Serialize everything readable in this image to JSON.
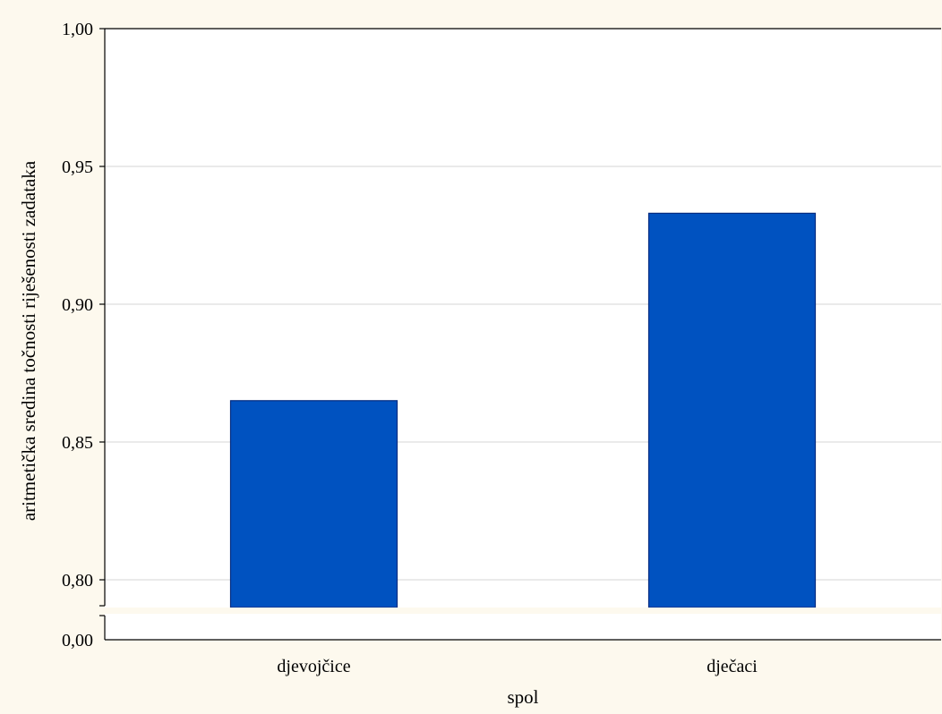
{
  "chart_data": {
    "type": "bar",
    "categories": [
      "djevojčice",
      "dječaci"
    ],
    "values": [
      0.865,
      0.933
    ],
    "xlabel": "spol",
    "ylabel": "aritmetička sredina točnosti riješenosti zadataka",
    "ylim": [
      0.79,
      1.0
    ],
    "axis_break": true,
    "break_base_label": "0,00",
    "yticks": [
      0.8,
      0.85,
      0.9,
      0.95,
      1.0
    ],
    "ytick_labels": [
      "0,80",
      "0,85",
      "0,90",
      "0,95",
      "1,00"
    ],
    "grid": true,
    "legend": "none",
    "bar_color": "#0052c0",
    "bar_edge_color": "#002a80",
    "grid_color": "#d4d4d4",
    "plot_background": "#ffffff",
    "page_background": "#fdf9ee"
  }
}
